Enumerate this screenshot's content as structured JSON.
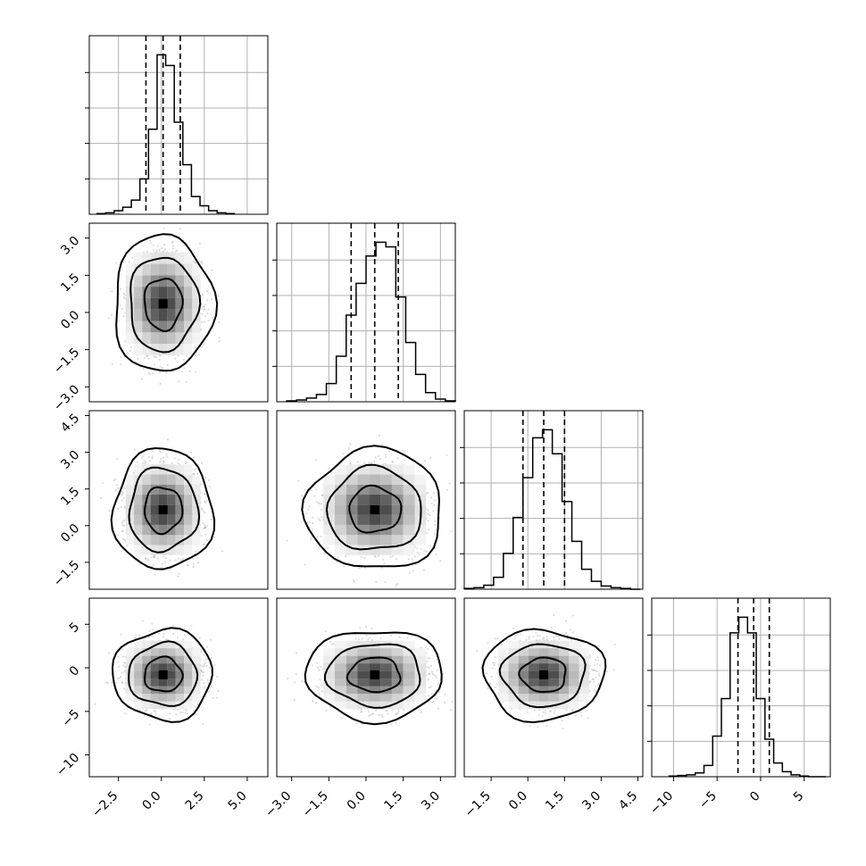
{
  "chart_data": {
    "type": "corner",
    "grid": true,
    "n_params": 4,
    "params": [
      {
        "range": [
          -4.2,
          6.2
        ],
        "ticks": [
          -2.5,
          0.0,
          2.5,
          5.0
        ],
        "tick_labels": [
          "−2.5",
          "0.0",
          "2.5",
          "5.0"
        ],
        "mean": 0.1,
        "sd": 1.0,
        "quantiles": [
          -0.9,
          0.1,
          1.1
        ]
      },
      {
        "range": [
          -3.6,
          3.6
        ],
        "ticks": [
          -3.0,
          -1.5,
          0.0,
          1.5,
          3.0
        ],
        "tick_labels": [
          "−3.0",
          "−1.5",
          "0.0",
          "1.5",
          "3.0"
        ],
        "mean": 0.35,
        "sd": 0.95,
        "quantiles": [
          -0.6,
          0.35,
          1.3
        ]
      },
      {
        "range": [
          -2.6,
          4.7
        ],
        "ticks": [
          -1.5,
          0.0,
          1.5,
          3.0,
          4.5
        ],
        "tick_labels": [
          "−1.5",
          "0.0",
          "1.5",
          "3.0",
          "4.5"
        ],
        "mean": 0.65,
        "sd": 0.85,
        "quantiles": [
          -0.2,
          0.65,
          1.5
        ]
      },
      {
        "range": [
          -12.5,
          8.0
        ],
        "ticks": [
          -10,
          -5,
          0,
          5
        ],
        "tick_labels": [
          "−10",
          "−5",
          "0",
          "5"
        ],
        "mean": -0.8,
        "sd": 1.8,
        "quantiles": [
          -2.6,
          -0.8,
          1.0
        ]
      }
    ],
    "hist_bins": [
      [
        -3.75,
        -3.25,
        -2.75,
        -2.25,
        -1.75,
        -1.25,
        -0.75,
        -0.25,
        0.25,
        0.75,
        1.25,
        1.75,
        2.25,
        2.75,
        3.25,
        3.75,
        4.25
      ],
      [
        -3.2,
        -2.8,
        -2.4,
        -2.0,
        -1.6,
        -1.2,
        -0.8,
        -0.4,
        0.0,
        0.4,
        0.8,
        1.2,
        1.6,
        2.0,
        2.4,
        2.8,
        3.2,
        3.6
      ],
      [
        -2.6,
        -2.2,
        -1.8,
        -1.4,
        -1.0,
        -0.6,
        -0.2,
        0.2,
        0.6,
        1.0,
        1.4,
        1.8,
        2.2,
        2.6,
        3.0,
        3.4,
        3.8,
        4.2,
        4.6
      ],
      [
        -10.5,
        -9.5,
        -8.5,
        -7.5,
        -6.5,
        -5.5,
        -4.5,
        -3.5,
        -2.5,
        -1.5,
        -0.5,
        0.5,
        1.5,
        2.5,
        3.5,
        4.5,
        5.5,
        6.5,
        7.5
      ]
    ],
    "hist_counts": [
      [
        1,
        2,
        5,
        10,
        20,
        50,
        120,
        225,
        210,
        130,
        70,
        25,
        12,
        5,
        2,
        1
      ],
      [
        1,
        2,
        4,
        8,
        20,
        50,
        95,
        130,
        160,
        175,
        170,
        115,
        65,
        30,
        10,
        3,
        1
      ],
      [
        1,
        2,
        5,
        15,
        45,
        90,
        140,
        190,
        200,
        170,
        110,
        60,
        25,
        10,
        4,
        2,
        1,
        0
      ],
      [
        1,
        2,
        3,
        6,
        18,
        65,
        125,
        230,
        255,
        230,
        125,
        60,
        22,
        8,
        3,
        1,
        0,
        0
      ]
    ],
    "pairs": [
      {
        "x": 0,
        "y": 1
      },
      {
        "x": 0,
        "y": 2
      },
      {
        "x": 1,
        "y": 2
      },
      {
        "x": 0,
        "y": 3
      },
      {
        "x": 1,
        "y": 3
      },
      {
        "x": 2,
        "y": 3
      }
    ]
  }
}
